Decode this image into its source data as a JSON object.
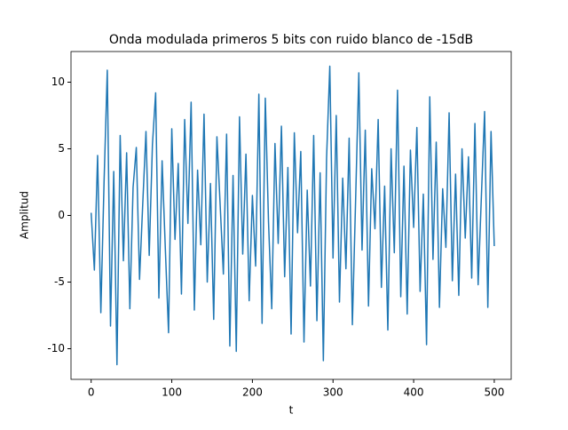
{
  "chart_data": {
    "type": "line",
    "title": "Onda modulada primeros 5 bits con ruido blanco de -15dB",
    "x_label": "t",
    "y_label": "Amplitud",
    "x": [
      0,
      4,
      8,
      12,
      16,
      20,
      24,
      28,
      32,
      36,
      40,
      44,
      48,
      52,
      56,
      60,
      64,
      68,
      72,
      76,
      80,
      84,
      88,
      92,
      96,
      100,
      104,
      108,
      112,
      116,
      120,
      124,
      128,
      132,
      136,
      140,
      144,
      148,
      152,
      156,
      160,
      164,
      168,
      172,
      176,
      180,
      184,
      188,
      192,
      196,
      200,
      204,
      208,
      212,
      216,
      220,
      224,
      228,
      232,
      236,
      240,
      244,
      248,
      252,
      256,
      260,
      264,
      268,
      272,
      276,
      280,
      284,
      288,
      292,
      296,
      300,
      304,
      308,
      312,
      316,
      320,
      324,
      328,
      332,
      336,
      340,
      344,
      348,
      352,
      356,
      360,
      364,
      368,
      372,
      376,
      380,
      384,
      388,
      392,
      396,
      400,
      404,
      408,
      412,
      416,
      420,
      424,
      428,
      432,
      436,
      440,
      444,
      448,
      452,
      456,
      460,
      464,
      468,
      472,
      476,
      480,
      484,
      488,
      492,
      496,
      500
    ],
    "series": [
      {
        "color": "#1f77b4",
        "values": [
          0.2,
          -4.1,
          4.5,
          -7.3,
          2.5,
          10.9,
          -8.3,
          3.3,
          -11.2,
          6.0,
          -3.4,
          4.7,
          -7.0,
          2.1,
          5.1,
          -4.8,
          0.9,
          6.3,
          -3.0,
          5.3,
          9.2,
          -6.2,
          4.1,
          -2.5,
          -8.8,
          6.5,
          -1.8,
          3.9,
          -5.9,
          7.2,
          -0.6,
          8.5,
          -7.1,
          3.4,
          -2.2,
          7.6,
          -5.0,
          2.4,
          -7.8,
          5.9,
          0.8,
          -4.4,
          6.1,
          -9.8,
          3.0,
          -10.2,
          7.4,
          -2.9,
          4.6,
          -6.4,
          1.5,
          -3.8,
          9.1,
          -8.1,
          8.8,
          -0.5,
          -7.0,
          5.4,
          -2.1,
          6.7,
          -4.6,
          3.6,
          -8.9,
          6.2,
          -1.3,
          4.8,
          -9.5,
          1.9,
          -5.3,
          6.0,
          -7.9,
          3.2,
          -10.9,
          4.3,
          11.2,
          -3.2,
          7.5,
          -6.5,
          2.8,
          -4.0,
          5.8,
          -8.2,
          1.1,
          10.7,
          -2.6,
          6.4,
          -6.8,
          3.5,
          -1.0,
          7.2,
          -5.4,
          2.2,
          -8.6,
          5.0,
          -2.8,
          9.4,
          -6.1,
          3.7,
          -7.4,
          4.9,
          -0.9,
          6.6,
          -5.7,
          1.6,
          -9.7,
          8.9,
          -3.3,
          5.5,
          -6.9,
          2.0,
          -2.4,
          7.7,
          -4.9,
          3.1,
          -6.0,
          5.0,
          -1.7,
          4.4,
          -4.7,
          6.9,
          -5.2,
          1.4,
          7.8,
          -6.9,
          6.3,
          -2.3
        ]
      }
    ],
    "xlim": [
      -25,
      521
    ],
    "ylim": [
      -12.3,
      12.3
    ],
    "xticks": [
      0,
      100,
      200,
      300,
      400,
      500
    ],
    "yticks": [
      -10,
      -5,
      0,
      5,
      10
    ]
  }
}
